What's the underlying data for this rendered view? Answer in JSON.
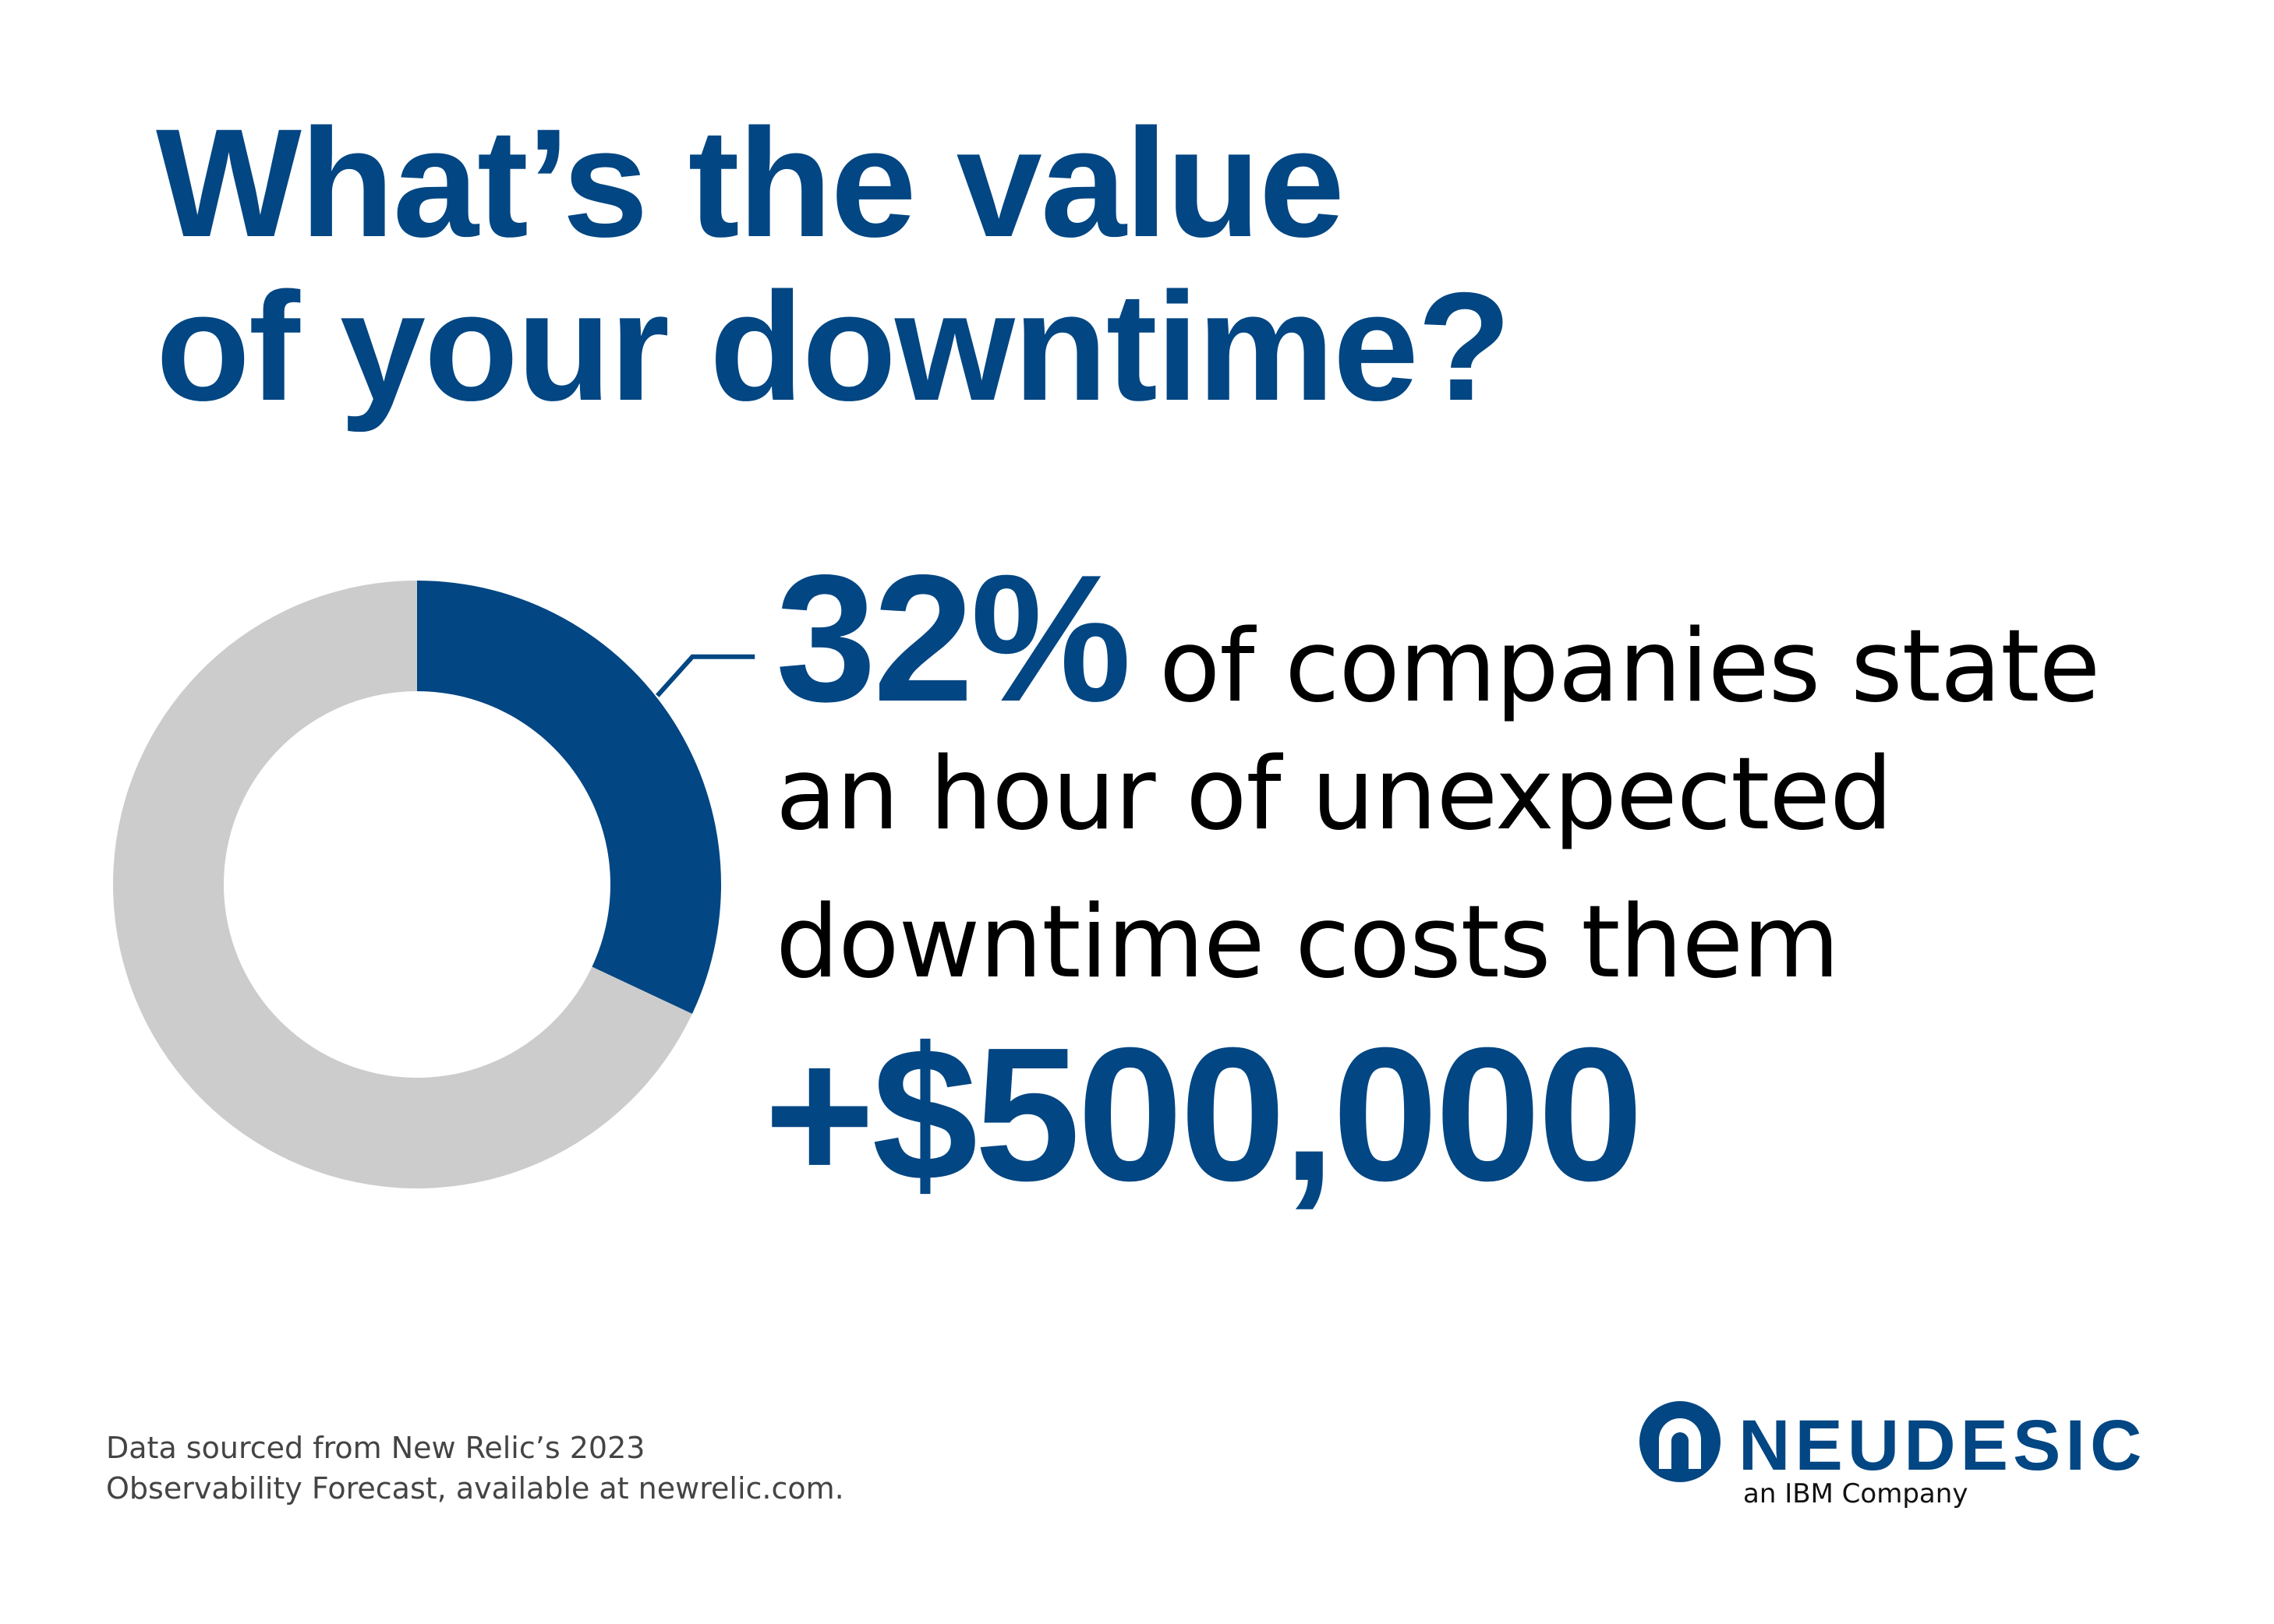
{
  "title": {
    "line1": "What’s the value",
    "line2": "of your downtime?"
  },
  "stat": {
    "percent": "32%",
    "text_line1": " of companies state",
    "text_line2": "an hour of unexpected",
    "text_line3": "downtime costs them",
    "amount": "+$500,000"
  },
  "source": {
    "line1": "Data sourced from New Relic’s 2023",
    "line2": "Observability Forecast, available at newrelic.com."
  },
  "brand": {
    "name": "NEUDESIC",
    "tagline": "an IBM Company",
    "color": "#024683"
  },
  "chart_data": {
    "type": "pie",
    "donut": true,
    "slices": [
      {
        "value": 32,
        "color": "#024683"
      },
      {
        "value": 68,
        "color": "#cccccc"
      }
    ],
    "start_angle_deg": 0,
    "direction": "clockwise"
  }
}
